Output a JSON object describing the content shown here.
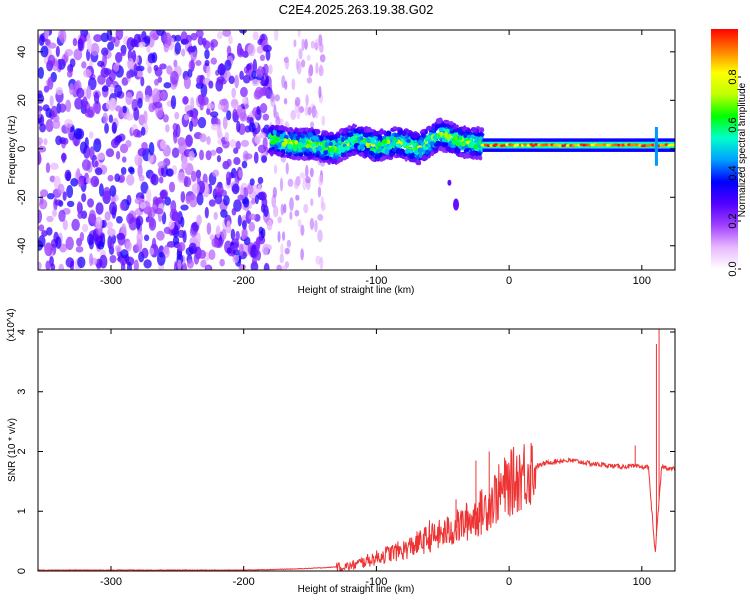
{
  "title": "C2E4.2025.263.19.38.G02",
  "chart_data": [
    {
      "type": "heatmap",
      "xlabel": "Height of straight line (km)",
      "ylabel": "Frequency (Hz)",
      "xlim": [
        -355,
        125
      ],
      "ylim": [
        -50,
        49
      ],
      "xticks": [
        -300,
        -200,
        -100,
        0,
        100
      ],
      "yticks": [
        -40,
        -20,
        0,
        20,
        40
      ],
      "colorbar": {
        "label": "Normalized spectral amplitude",
        "range": [
          0,
          1
        ],
        "ticks": [
          0.0,
          0.2,
          0.4,
          0.6,
          0.8
        ],
        "colormap": [
          "#ffffff",
          "#e8b8ff",
          "#a040ff",
          "#5000ff",
          "#0000ff",
          "#00a0ff",
          "#00ffcc",
          "#00ff00",
          "#c0ff00",
          "#ffff00",
          "#ff8000",
          "#ff0000"
        ]
      },
      "regions": [
        {
          "name": "noise",
          "x": [
            -355,
            -180
          ],
          "freq": [
            -50,
            49
          ],
          "amplitude": 0.25
        },
        {
          "name": "faint noise",
          "x": [
            -180,
            -140
          ],
          "freq": [
            -50,
            49
          ],
          "amplitude": 0.08
        },
        {
          "name": "broad signal",
          "x": [
            -180,
            -20
          ],
          "freq_center": [
            4,
            2,
            2,
            0,
            4,
            1,
            3,
            0,
            6,
            3,
            2
          ],
          "freq_halfwidth": 6,
          "amplitude": 0.4
        },
        {
          "name": "isolated blob",
          "x": [
            -40,
            -40
          ],
          "freq_center": [
            -23
          ],
          "amplitude": 0.25
        },
        {
          "name": "carrier line",
          "x": [
            -20,
            125
          ],
          "freq_center": [
            1.5
          ],
          "freq_halfwidth": 2,
          "amplitude": 0.9
        }
      ]
    },
    {
      "type": "line",
      "xlabel": "Height of straight line (km)",
      "ylabel": "SNR (10 * v/v)",
      "y_multiplier": "(x10^4)",
      "xlim": [
        -355,
        125
      ],
      "ylim": [
        0,
        4.05
      ],
      "xticks": [
        -300,
        -200,
        -100,
        0,
        100
      ],
      "yticks": [
        0,
        1,
        2,
        3,
        4
      ],
      "color": "#ee3333",
      "x": [
        -355,
        -300,
        -250,
        -200,
        -180,
        -160,
        -140,
        -120,
        -110,
        -100,
        -90,
        -80,
        -70,
        -60,
        -50,
        -40,
        -30,
        -20,
        -10,
        0,
        10,
        20,
        30,
        40,
        50,
        60,
        70,
        80,
        90,
        100,
        105,
        110,
        115,
        120,
        125
      ],
      "y": [
        0.01,
        0.01,
        0.01,
        0.01,
        0.02,
        0.03,
        0.05,
        0.08,
        0.15,
        0.22,
        0.3,
        0.35,
        0.45,
        0.55,
        0.62,
        0.72,
        0.85,
        1.0,
        1.25,
        1.45,
        1.62,
        1.75,
        1.82,
        1.85,
        1.84,
        1.8,
        1.78,
        1.75,
        1.75,
        1.74,
        1.74,
        0.3,
        1.75,
        1.72,
        1.71
      ],
      "peaks": [
        {
          "x": -60,
          "y": 0.85
        },
        {
          "x": -40,
          "y": 1.2
        },
        {
          "x": -25,
          "y": 1.85
        },
        {
          "x": -15,
          "y": 2.0
        },
        {
          "x": 95,
          "y": 2.1
        },
        {
          "x": 111,
          "y": 3.8
        },
        {
          "x": 113,
          "y": 4.05
        }
      ]
    }
  ]
}
